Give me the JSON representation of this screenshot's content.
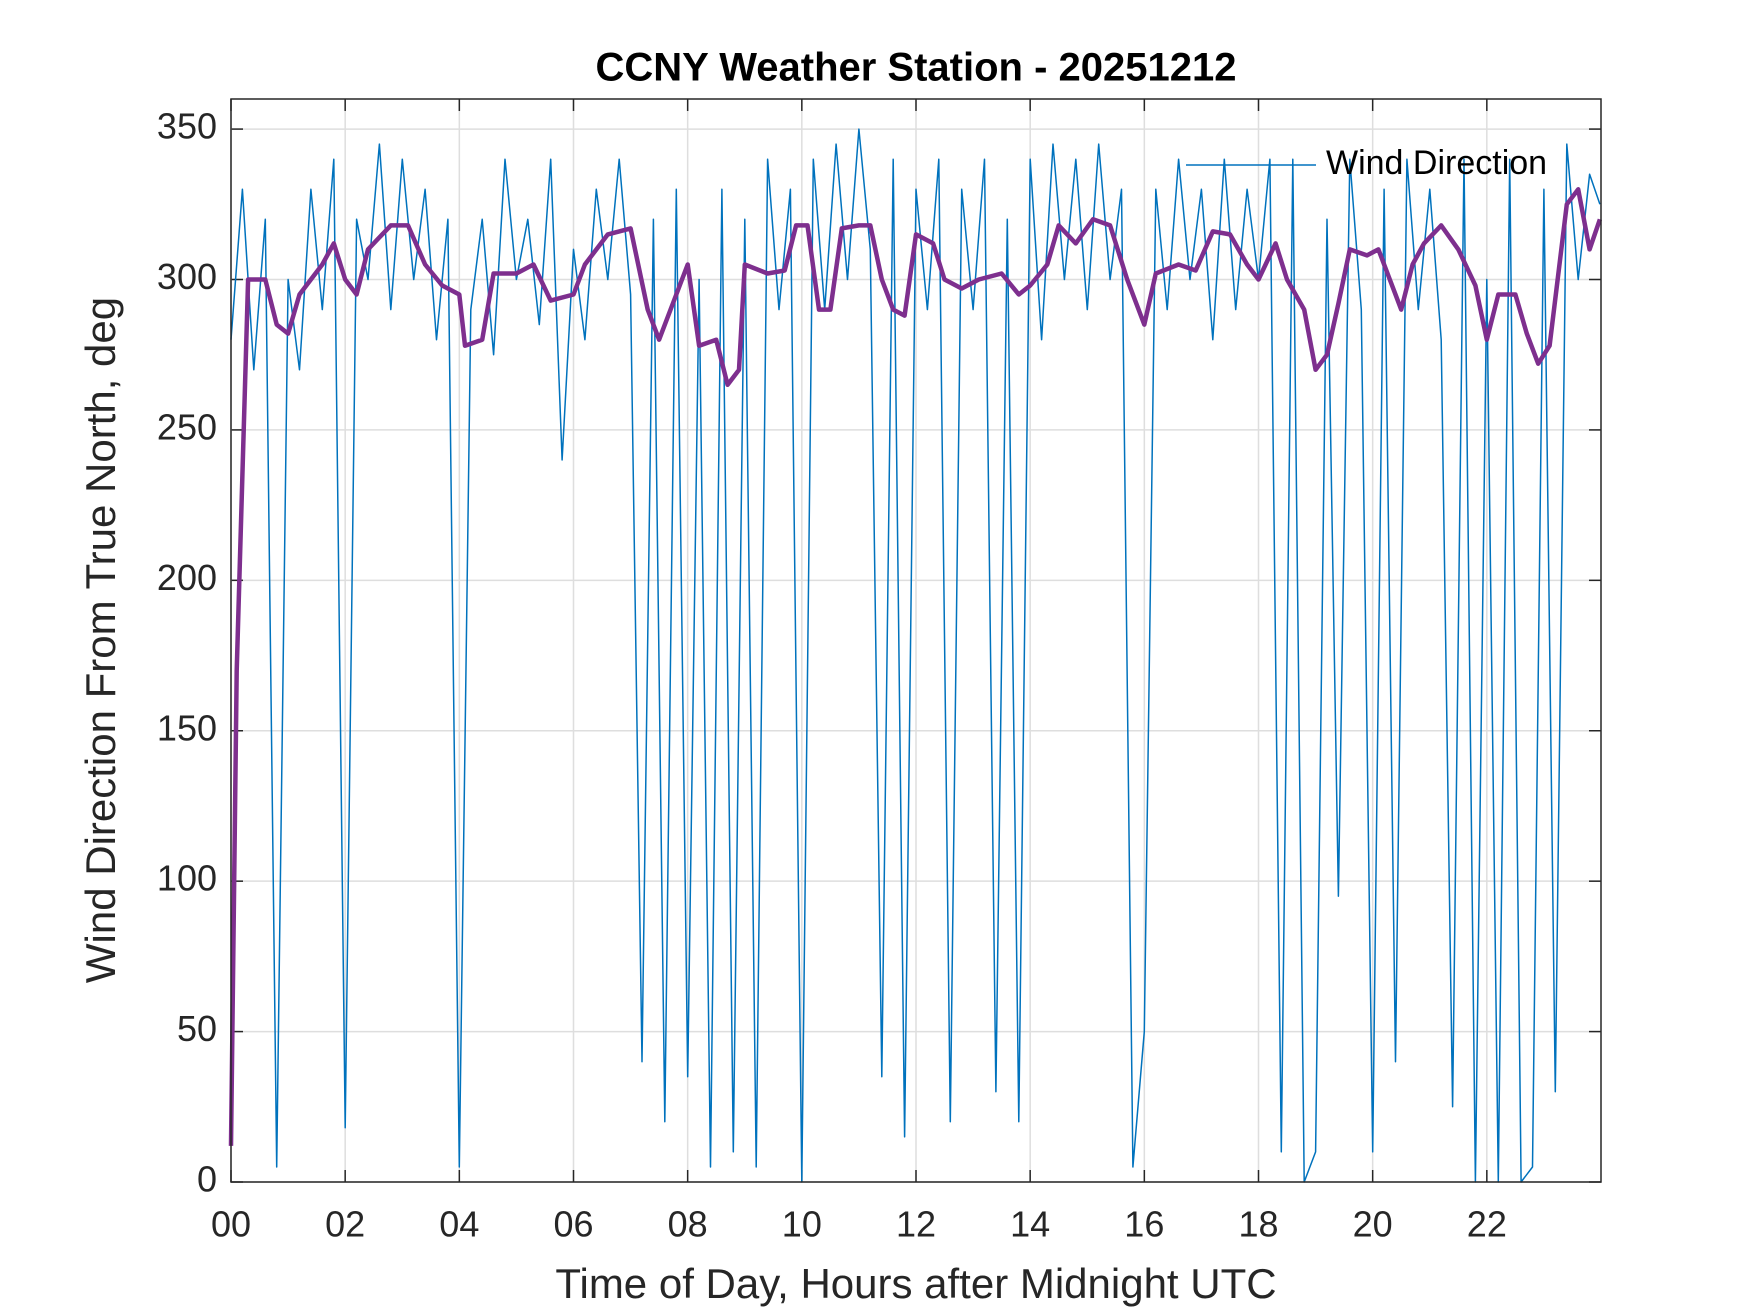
{
  "chart_data": {
    "type": "line",
    "title": "CCNY Weather Station - 20251212",
    "x_label": "Time of Day, Hours after Midnight UTC",
    "y_label": "Wind Direction From True North, deg",
    "xlim": [
      0,
      24
    ],
    "xticks": [
      {
        "value": 0,
        "label": "00"
      },
      {
        "value": 2,
        "label": "02"
      },
      {
        "value": 4,
        "label": "04"
      },
      {
        "value": 6,
        "label": "06"
      },
      {
        "value": 8,
        "label": "08"
      },
      {
        "value": 10,
        "label": "10"
      },
      {
        "value": 12,
        "label": "12"
      },
      {
        "value": 14,
        "label": "14"
      },
      {
        "value": 16,
        "label": "16"
      },
      {
        "value": 18,
        "label": "18"
      },
      {
        "value": 20,
        "label": "20"
      },
      {
        "value": 22,
        "label": "22"
      }
    ],
    "ylim": [
      0,
      360
    ],
    "yticks": [
      0,
      50,
      100,
      150,
      200,
      250,
      300,
      350
    ],
    "grid": true,
    "legend": "northeast",
    "series": [
      {
        "name": "Wind Direction",
        "color": "#0072bd",
        "width": 1.5,
        "x": [
          0,
          0.2,
          0.4,
          0.6,
          0.8,
          1,
          1.2,
          1.4,
          1.6,
          1.8,
          2,
          2.2,
          2.4,
          2.6,
          2.8,
          3,
          3.2,
          3.4,
          3.6,
          3.8,
          4,
          4.2,
          4.4,
          4.6,
          4.8,
          5,
          5.2,
          5.4,
          5.6,
          5.8,
          6,
          6.2,
          6.4,
          6.6,
          6.8,
          7,
          7.2,
          7.4,
          7.6,
          7.8,
          8,
          8.2,
          8.4,
          8.6,
          8.8,
          9,
          9.2,
          9.4,
          9.6,
          9.8,
          10,
          10.2,
          10.4,
          10.6,
          10.8,
          11,
          11.2,
          11.4,
          11.6,
          11.8,
          12,
          12.2,
          12.4,
          12.6,
          12.8,
          13,
          13.2,
          13.4,
          13.6,
          13.8,
          14,
          14.2,
          14.4,
          14.6,
          14.8,
          15,
          15.2,
          15.4,
          15.6,
          15.8,
          16,
          16.2,
          16.4,
          16.6,
          16.8,
          17,
          17.2,
          17.4,
          17.6,
          17.8,
          18,
          18.2,
          18.4,
          18.6,
          18.8,
          19,
          19.2,
          19.4,
          19.6,
          19.8,
          20,
          20.2,
          20.4,
          20.6,
          20.8,
          21,
          21.2,
          21.4,
          21.6,
          21.8,
          22,
          22.2,
          22.4,
          22.6,
          22.8,
          23,
          23.2,
          23.4,
          23.6,
          23.8,
          23.98
        ],
        "values": [
          280,
          330,
          270,
          320,
          5,
          300,
          270,
          330,
          290,
          340,
          18,
          320,
          300,
          345,
          290,
          340,
          300,
          330,
          280,
          320,
          5,
          290,
          320,
          275,
          340,
          300,
          320,
          285,
          340,
          240,
          310,
          280,
          330,
          300,
          340,
          295,
          40,
          320,
          20,
          330,
          35,
          300,
          5,
          330,
          10,
          320,
          5,
          340,
          290,
          330,
          0,
          340,
          290,
          345,
          300,
          350,
          310,
          35,
          340,
          15,
          330,
          290,
          340,
          20,
          330,
          290,
          340,
          30,
          320,
          20,
          340,
          280,
          345,
          300,
          340,
          290,
          345,
          300,
          330,
          5,
          50,
          330,
          290,
          340,
          300,
          330,
          280,
          340,
          290,
          330,
          300,
          340,
          10,
          340,
          0,
          10,
          320,
          95,
          340,
          290,
          10,
          330,
          40,
          340,
          290,
          330,
          280,
          25,
          340,
          0,
          300,
          0,
          340,
          0,
          5,
          330,
          30,
          345,
          300,
          335,
          325
        ]
      },
      {
        "color": "#7e2f8e",
        "width": 4.5,
        "x": [
          0,
          0.1,
          0.3,
          0.6,
          0.8,
          1,
          1.2,
          1.6,
          1.8,
          2,
          2.2,
          2.4,
          2.8,
          3.1,
          3.4,
          3.7,
          4,
          4.1,
          4.4,
          4.6,
          5,
          5.3,
          5.6,
          6,
          6.2,
          6.6,
          7,
          7.3,
          7.5,
          7.8,
          8,
          8.2,
          8.5,
          8.7,
          8.9,
          9,
          9.4,
          9.7,
          9.9,
          10.1,
          10.3,
          10.5,
          10.7,
          11,
          11.2,
          11.4,
          11.6,
          11.8,
          12,
          12.3,
          12.5,
          12.8,
          13.1,
          13.5,
          13.8,
          14,
          14.3,
          14.5,
          14.8,
          15.1,
          15.4,
          15.7,
          16,
          16.2,
          16.6,
          16.9,
          17.2,
          17.5,
          17.8,
          18,
          18.3,
          18.5,
          18.8,
          19,
          19.2,
          19.4,
          19.6,
          19.9,
          20.1,
          20.3,
          20.5,
          20.7,
          20.9,
          21.2,
          21.5,
          21.8,
          22,
          22.2,
          22.5,
          22.7,
          22.9,
          23.1,
          23.4,
          23.6,
          23.8,
          23.98
        ],
        "values": [
          12,
          170,
          300,
          300,
          285,
          282,
          295,
          305,
          312,
          300,
          295,
          310,
          318,
          318,
          305,
          298,
          295,
          278,
          280,
          302,
          302,
          305,
          293,
          295,
          305,
          315,
          317,
          290,
          280,
          295,
          305,
          278,
          280,
          265,
          270,
          305,
          302,
          303,
          318,
          318,
          290,
          290,
          317,
          318,
          318,
          300,
          290,
          288,
          315,
          312,
          300,
          297,
          300,
          302,
          295,
          298,
          305,
          318,
          312,
          320,
          318,
          300,
          285,
          302,
          305,
          303,
          316,
          315,
          305,
          300,
          312,
          300,
          290,
          270,
          275,
          292,
          310,
          308,
          310,
          300,
          290,
          305,
          312,
          318,
          310,
          298,
          280,
          295,
          295,
          282,
          272,
          278,
          325,
          330,
          310,
          320
        ]
      }
    ]
  }
}
